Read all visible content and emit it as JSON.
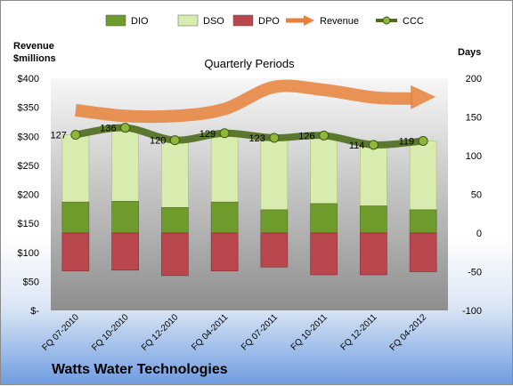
{
  "chart_data": {
    "type": "bar",
    "subtitle": "Quarterly Periods",
    "company": "Watts Water Technologies",
    "left_axis": {
      "title_line1": "Revenue",
      "title_line2": "$millions",
      "ticks": [
        "$-",
        "$50",
        "$100",
        "$150",
        "$200",
        "$250",
        "$300",
        "$350",
        "$400"
      ],
      "ylim": [
        0,
        400
      ]
    },
    "right_axis": {
      "title": "Days",
      "ticks": [
        "-100",
        "-50",
        "0",
        "50",
        "100",
        "150",
        "200"
      ],
      "ylim": [
        -100,
        200
      ]
    },
    "categories": [
      "FQ 07-2010",
      "FQ 10-2010",
      "FQ 12-2010",
      "FQ 04-2011",
      "FQ 07-2011",
      "FQ 10-2011",
      "FQ 12-2011",
      "FQ 04-2012"
    ],
    "series": [
      {
        "name": "DIO",
        "kind": "stacked-bar",
        "axis": "right",
        "color": "#6f9a2c",
        "values": [
          40,
          41,
          33,
          40,
          30,
          38,
          35,
          30
        ]
      },
      {
        "name": "DSO",
        "kind": "stacked-bar",
        "axis": "right",
        "color": "#d9ecb0",
        "values": [
          87,
          95,
          87,
          89,
          93,
          88,
          79,
          89
        ]
      },
      {
        "name": "DPO",
        "kind": "bar",
        "axis": "right",
        "color": "#b9474d",
        "values": [
          -49,
          -48,
          -55,
          -49,
          -44,
          -54,
          -54,
          -50
        ]
      },
      {
        "name": "Revenue",
        "kind": "line",
        "axis": "left",
        "color": "#e8813a",
        "values": [
          345,
          335,
          335,
          347,
          385,
          380,
          367,
          365
        ]
      },
      {
        "name": "CCC",
        "kind": "line",
        "axis": "right",
        "color": "#4e6b1c",
        "values": [
          127,
          136,
          120,
          129,
          123,
          126,
          114,
          119
        ],
        "labels": [
          "127",
          "136",
          "120",
          "129",
          "123",
          "126",
          "114",
          "119"
        ]
      }
    ],
    "legend_position": "top",
    "grid": false
  }
}
